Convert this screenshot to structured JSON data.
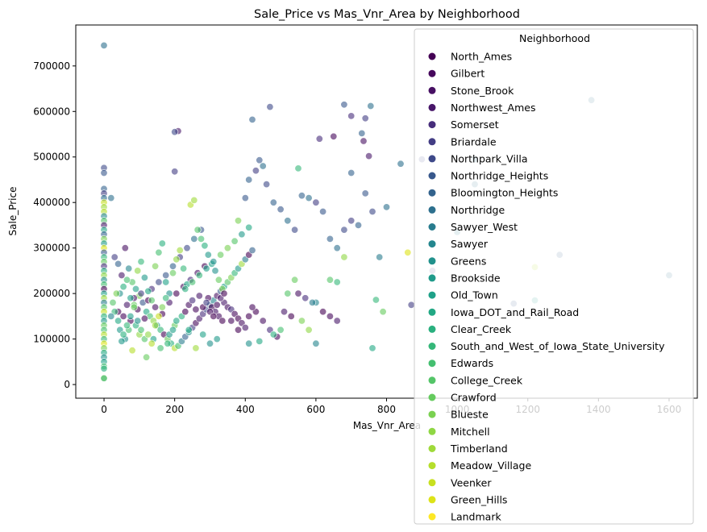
{
  "chart_data": {
    "type": "scatter",
    "title": "Sale_Price vs Mas_Vnr_Area by Neighborhood",
    "xlabel": "Mas_Vnr_Area",
    "ylabel": "Sale_Price",
    "xlim": [
      -80,
      1680
    ],
    "ylim": [
      -30000,
      790000
    ],
    "xticks": [
      0,
      200,
      400,
      600,
      800,
      1000,
      1200,
      1400,
      1600
    ],
    "yticks": [
      0,
      100000,
      200000,
      300000,
      400000,
      500000,
      600000,
      700000
    ],
    "xtick_labels": [
      "0",
      "200",
      "400",
      "600",
      "800",
      "1000",
      "1200",
      "1400",
      "1600"
    ],
    "ytick_labels": [
      "0",
      "100000",
      "200000",
      "300000",
      "400000",
      "500000",
      "600000",
      "700000"
    ],
    "grid": false,
    "legend": {
      "title": "Neighborhood",
      "placement": "upper-right"
    },
    "series": [
      {
        "name": "North_Ames",
        "color": "#440154"
      },
      {
        "name": "Gilbert",
        "color": "#46085c"
      },
      {
        "name": "Stone_Brook",
        "color": "#471063"
      },
      {
        "name": "Northwest_Ames",
        "color": "#481769"
      },
      {
        "name": "Somerset",
        "color": "#472d7b"
      },
      {
        "name": "Briardale",
        "color": "#433d84"
      },
      {
        "name": "Northpark_Villa",
        "color": "#3e4989"
      },
      {
        "name": "Northridge_Heights",
        "color": "#38588c"
      },
      {
        "name": "Bloomington_Heights",
        "color": "#33638d"
      },
      {
        "name": "Northridge",
        "color": "#2d708e"
      },
      {
        "name": "Sawyer_West",
        "color": "#287c8e"
      },
      {
        "name": "Sawyer",
        "color": "#24868e"
      },
      {
        "name": "Greens",
        "color": "#21918c"
      },
      {
        "name": "Brookside",
        "color": "#1f9a8a"
      },
      {
        "name": "Old_Town",
        "color": "#1fa188"
      },
      {
        "name": "Iowa_DOT_and_Rail_Road",
        "color": "#22a884"
      },
      {
        "name": "Clear_Creek",
        "color": "#2ab07f"
      },
      {
        "name": "South_and_West_of_Iowa_State_University",
        "color": "#35b779"
      },
      {
        "name": "Edwards",
        "color": "#44bf70"
      },
      {
        "name": "College_Creek",
        "color": "#54c568"
      },
      {
        "name": "Crawford",
        "color": "#65cb5e"
      },
      {
        "name": "Blueste",
        "color": "#7ad151"
      },
      {
        "name": "Mitchell",
        "color": "#8fd744"
      },
      {
        "name": "Timberland",
        "color": "#9fda3a"
      },
      {
        "name": "Meadow_Village",
        "color": "#b5de2b"
      },
      {
        "name": "Veenker",
        "color": "#c8e020"
      },
      {
        "name": "Green_Hills",
        "color": "#dde318"
      },
      {
        "name": "Landmark",
        "color": "#fde725"
      }
    ],
    "points": [
      [
        0,
        745000,
        9
      ],
      [
        0,
        476000,
        6
      ],
      [
        0,
        465000,
        7
      ],
      [
        0,
        430000,
        8
      ],
      [
        0,
        420000,
        5
      ],
      [
        0,
        410000,
        9
      ],
      [
        0,
        400000,
        25
      ],
      [
        0,
        390000,
        23
      ],
      [
        0,
        380000,
        24
      ],
      [
        0,
        370000,
        11
      ],
      [
        0,
        360000,
        19
      ],
      [
        0,
        350000,
        3
      ],
      [
        0,
        340000,
        15
      ],
      [
        0,
        330000,
        8
      ],
      [
        0,
        320000,
        21
      ],
      [
        0,
        310000,
        13
      ],
      [
        0,
        300000,
        26
      ],
      [
        0,
        290000,
        7
      ],
      [
        0,
        280000,
        17
      ],
      [
        0,
        270000,
        20
      ],
      [
        0,
        260000,
        4
      ],
      [
        0,
        250000,
        16
      ],
      [
        0,
        240000,
        22
      ],
      [
        0,
        230000,
        12
      ],
      [
        0,
        220000,
        18
      ],
      [
        0,
        210000,
        0
      ],
      [
        0,
        200000,
        14
      ],
      [
        0,
        190000,
        23
      ],
      [
        0,
        180000,
        10
      ],
      [
        0,
        170000,
        19
      ],
      [
        0,
        160000,
        25
      ],
      [
        0,
        150000,
        16
      ],
      [
        0,
        140000,
        13
      ],
      [
        0,
        130000,
        20
      ],
      [
        0,
        120000,
        18
      ],
      [
        0,
        110000,
        24
      ],
      [
        0,
        100000,
        17
      ],
      [
        0,
        90000,
        26
      ],
      [
        0,
        80000,
        21
      ],
      [
        0,
        70000,
        15
      ],
      [
        0,
        60000,
        12
      ],
      [
        0,
        50000,
        14
      ],
      [
        0,
        40000,
        18
      ],
      [
        0,
        35000,
        16
      ],
      [
        0,
        13000,
        14
      ],
      [
        0,
        14000,
        20
      ],
      [
        20,
        410000,
        9
      ],
      [
        210,
        557000,
        3
      ],
      [
        200,
        555000,
        6
      ],
      [
        420,
        582000,
        8
      ],
      [
        470,
        610000,
        6
      ],
      [
        680,
        615000,
        7
      ],
      [
        700,
        590000,
        4
      ],
      [
        755,
        612000,
        9
      ],
      [
        740,
        585000,
        5
      ],
      [
        730,
        552000,
        8
      ],
      [
        735,
        535000,
        2
      ],
      [
        650,
        545000,
        1
      ],
      [
        610,
        540000,
        4
      ],
      [
        750,
        502000,
        3
      ],
      [
        440,
        493000,
        7
      ],
      [
        200,
        468000,
        5
      ],
      [
        550,
        475000,
        17
      ],
      [
        700,
        465000,
        8
      ],
      [
        840,
        485000,
        9
      ],
      [
        900,
        495000,
        6
      ],
      [
        1050,
        495000,
        9
      ],
      [
        1380,
        625000,
        9
      ],
      [
        1290,
        285000,
        8
      ],
      [
        1600,
        240000,
        9
      ],
      [
        1220,
        258000,
        24
      ],
      [
        1160,
        178000,
        7
      ],
      [
        1220,
        185000,
        13
      ],
      [
        1050,
        440000,
        9
      ],
      [
        1000,
        335000,
        10
      ],
      [
        930,
        250000,
        6
      ],
      [
        870,
        175000,
        5
      ],
      [
        760,
        80000,
        15
      ],
      [
        790,
        160000,
        20
      ],
      [
        770,
        186000,
        17
      ],
      [
        860,
        290000,
        26
      ],
      [
        30,
        280000,
        5
      ],
      [
        40,
        265000,
        8
      ],
      [
        50,
        240000,
        3
      ],
      [
        60,
        300000,
        2
      ],
      [
        70,
        255000,
        11
      ],
      [
        80,
        225000,
        19
      ],
      [
        90,
        210000,
        14
      ],
      [
        100,
        195000,
        21
      ],
      [
        110,
        180000,
        7
      ],
      [
        120,
        160000,
        15
      ],
      [
        130,
        150000,
        18
      ],
      [
        140,
        140000,
        22
      ],
      [
        150,
        130000,
        13
      ],
      [
        160,
        120000,
        17
      ],
      [
        170,
        110000,
        0
      ],
      [
        180,
        100000,
        20
      ],
      [
        190,
        90000,
        16
      ],
      [
        200,
        80000,
        24
      ],
      [
        210,
        85000,
        18
      ],
      [
        220,
        95000,
        10
      ],
      [
        230,
        105000,
        8
      ],
      [
        240,
        115000,
        12
      ],
      [
        250,
        125000,
        5
      ],
      [
        260,
        135000,
        1
      ],
      [
        270,
        145000,
        3
      ],
      [
        280,
        155000,
        4
      ],
      [
        290,
        165000,
        6
      ],
      [
        300,
        175000,
        9
      ],
      [
        310,
        185000,
        11
      ],
      [
        320,
        195000,
        2
      ],
      [
        330,
        205000,
        7
      ],
      [
        340,
        215000,
        14
      ],
      [
        350,
        225000,
        19
      ],
      [
        360,
        235000,
        21
      ],
      [
        370,
        245000,
        17
      ],
      [
        380,
        255000,
        13
      ],
      [
        390,
        265000,
        23
      ],
      [
        400,
        275000,
        10
      ],
      [
        410,
        285000,
        0
      ],
      [
        420,
        295000,
        8
      ],
      [
        40,
        160000,
        0
      ],
      [
        55,
        150000,
        1
      ],
      [
        65,
        175000,
        3
      ],
      [
        75,
        140000,
        0
      ],
      [
        85,
        190000,
        2
      ],
      [
        95,
        165000,
        0
      ],
      [
        105,
        200000,
        5
      ],
      [
        115,
        145000,
        1
      ],
      [
        125,
        185000,
        0
      ],
      [
        135,
        210000,
        4
      ],
      [
        145,
        170000,
        2
      ],
      [
        155,
        225000,
        6
      ],
      [
        165,
        155000,
        0
      ],
      [
        175,
        240000,
        7
      ],
      [
        185,
        180000,
        3
      ],
      [
        195,
        260000,
        8
      ],
      [
        205,
        200000,
        0
      ],
      [
        215,
        280000,
        5
      ],
      [
        225,
        215000,
        1
      ],
      [
        235,
        300000,
        6
      ],
      [
        245,
        230000,
        4
      ],
      [
        255,
        320000,
        9
      ],
      [
        265,
        245000,
        2
      ],
      [
        275,
        340000,
        7
      ],
      [
        285,
        260000,
        0
      ],
      [
        295,
        190000,
        1
      ],
      [
        305,
        170000,
        0
      ],
      [
        315,
        160000,
        3
      ],
      [
        325,
        150000,
        2
      ],
      [
        335,
        140000,
        0
      ],
      [
        45,
        200000,
        12
      ],
      [
        55,
        215000,
        16
      ],
      [
        65,
        230000,
        18
      ],
      [
        75,
        190000,
        14
      ],
      [
        85,
        175000,
        20
      ],
      [
        95,
        250000,
        22
      ],
      [
        105,
        270000,
        17
      ],
      [
        115,
        235000,
        13
      ],
      [
        125,
        205000,
        15
      ],
      [
        135,
        185000,
        19
      ],
      [
        145,
        260000,
        21
      ],
      [
        155,
        290000,
        18
      ],
      [
        165,
        310000,
        16
      ],
      [
        175,
        225000,
        14
      ],
      [
        185,
        200000,
        12
      ],
      [
        195,
        245000,
        20
      ],
      [
        205,
        275000,
        22
      ],
      [
        215,
        295000,
        23
      ],
      [
        225,
        255000,
        17
      ],
      [
        235,
        220000,
        15
      ],
      [
        245,
        395000,
        24
      ],
      [
        255,
        405000,
        23
      ],
      [
        265,
        340000,
        19
      ],
      [
        275,
        320000,
        18
      ],
      [
        285,
        305000,
        16
      ],
      [
        295,
        285000,
        13
      ],
      [
        305,
        265000,
        14
      ],
      [
        315,
        250000,
        12
      ],
      [
        325,
        230000,
        20
      ],
      [
        335,
        210000,
        21
      ],
      [
        380,
        360000,
        21
      ],
      [
        400,
        410000,
        7
      ],
      [
        410,
        450000,
        8
      ],
      [
        430,
        470000,
        5
      ],
      [
        450,
        480000,
        9
      ],
      [
        460,
        440000,
        6
      ],
      [
        480,
        400000,
        8
      ],
      [
        500,
        385000,
        7
      ],
      [
        520,
        360000,
        9
      ],
      [
        540,
        340000,
        6
      ],
      [
        560,
        415000,
        8
      ],
      [
        580,
        410000,
        9
      ],
      [
        600,
        400000,
        5
      ],
      [
        620,
        380000,
        7
      ],
      [
        640,
        320000,
        8
      ],
      [
        660,
        300000,
        9
      ],
      [
        680,
        340000,
        6
      ],
      [
        700,
        360000,
        5
      ],
      [
        720,
        350000,
        8
      ],
      [
        740,
        420000,
        7
      ],
      [
        760,
        380000,
        6
      ],
      [
        780,
        280000,
        10
      ],
      [
        800,
        390000,
        9
      ],
      [
        600,
        180000,
        11
      ],
      [
        620,
        160000,
        0
      ],
      [
        640,
        150000,
        1
      ],
      [
        660,
        140000,
        3
      ],
      [
        640,
        230000,
        19
      ],
      [
        660,
        225000,
        17
      ],
      [
        680,
        280000,
        22
      ],
      [
        430,
        160000,
        0
      ],
      [
        450,
        140000,
        2
      ],
      [
        470,
        120000,
        4
      ],
      [
        490,
        105000,
        1
      ],
      [
        510,
        160000,
        3
      ],
      [
        530,
        150000,
        0
      ],
      [
        550,
        200000,
        2
      ],
      [
        570,
        190000,
        4
      ],
      [
        590,
        180000,
        10
      ],
      [
        410,
        90000,
        12
      ],
      [
        440,
        95000,
        15
      ],
      [
        480,
        110000,
        16
      ],
      [
        500,
        120000,
        18
      ],
      [
        520,
        200000,
        19
      ],
      [
        540,
        230000,
        20
      ],
      [
        560,
        140000,
        21
      ],
      [
        580,
        120000,
        22
      ],
      [
        600,
        90000,
        11
      ],
      [
        380,
        120000,
        0
      ],
      [
        360,
        140000,
        1
      ],
      [
        340,
        180000,
        3
      ],
      [
        320,
        100000,
        13
      ],
      [
        300,
        90000,
        12
      ],
      [
        280,
        110000,
        14
      ],
      [
        260,
        80000,
        23
      ],
      [
        240,
        120000,
        15
      ],
      [
        220,
        150000,
        16
      ],
      [
        200,
        130000,
        20
      ],
      [
        180,
        90000,
        17
      ],
      [
        160,
        80000,
        18
      ],
      [
        120,
        60000,
        20
      ],
      [
        140,
        100000,
        14
      ],
      [
        100,
        110000,
        22
      ],
      [
        90,
        130000,
        16
      ],
      [
        80,
        75000,
        24
      ],
      [
        70,
        120000,
        18
      ],
      [
        60,
        100000,
        12
      ],
      [
        50,
        95000,
        13
      ],
      [
        40,
        140000,
        15
      ],
      [
        30,
        160000,
        17
      ],
      [
        20,
        150000,
        11
      ],
      [
        25,
        180000,
        19
      ],
      [
        35,
        200000,
        21
      ],
      [
        45,
        120000,
        13
      ],
      [
        55,
        110000,
        16
      ],
      [
        65,
        130000,
        17
      ],
      [
        75,
        150000,
        14
      ],
      [
        85,
        170000,
        20
      ],
      [
        95,
        140000,
        12
      ],
      [
        105,
        120000,
        18
      ],
      [
        115,
        100000,
        19
      ],
      [
        125,
        110000,
        22
      ],
      [
        135,
        90000,
        24
      ],
      [
        145,
        130000,
        23
      ],
      [
        155,
        150000,
        25
      ],
      [
        165,
        170000,
        21
      ],
      [
        175,
        190000,
        17
      ],
      [
        185,
        110000,
        13
      ],
      [
        195,
        120000,
        14
      ],
      [
        205,
        140000,
        15
      ],
      [
        230,
        160000,
        0
      ],
      [
        240,
        175000,
        2
      ],
      [
        250,
        185000,
        4
      ],
      [
        260,
        165000,
        1
      ],
      [
        270,
        195000,
        3
      ],
      [
        280,
        170000,
        0
      ],
      [
        290,
        180000,
        5
      ],
      [
        300,
        160000,
        2
      ],
      [
        310,
        150000,
        0
      ],
      [
        320,
        175000,
        1
      ],
      [
        330,
        190000,
        3
      ],
      [
        340,
        200000,
        0
      ],
      [
        350,
        170000,
        2
      ],
      [
        360,
        165000,
        4
      ],
      [
        370,
        155000,
        1
      ],
      [
        380,
        145000,
        0
      ],
      [
        390,
        135000,
        2
      ],
      [
        400,
        125000,
        3
      ],
      [
        410,
        150000,
        0
      ],
      [
        420,
        170000,
        1
      ],
      [
        230,
        210000,
        16
      ],
      [
        250,
        225000,
        18
      ],
      [
        270,
        240000,
        17
      ],
      [
        290,
        255000,
        14
      ],
      [
        310,
        270000,
        12
      ],
      [
        330,
        285000,
        20
      ],
      [
        350,
        300000,
        21
      ],
      [
        370,
        315000,
        19
      ],
      [
        390,
        330000,
        13
      ],
      [
        410,
        345000,
        15
      ]
    ]
  }
}
